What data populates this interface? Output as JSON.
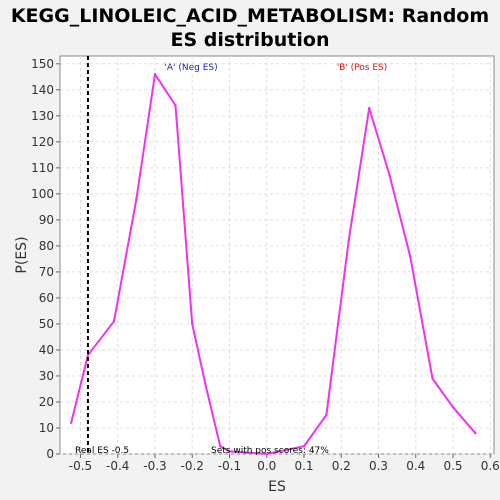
{
  "chart_data": {
    "type": "line",
    "title_line1": "KEGG_LINOLEIC_ACID_METABOLISM: Random",
    "title_line2": "ES distribution",
    "xlabel": "ES",
    "ylabel": "P(ES)",
    "xlim": [
      -0.555,
      0.61
    ],
    "ylim": [
      0,
      153
    ],
    "x_ticks": [
      "-0.5",
      "-0.4",
      "-0.3",
      "-0.2",
      "-0.1",
      "0.0",
      "0.1",
      "0.2",
      "0.3",
      "0.4",
      "0.5",
      "0.6"
    ],
    "x_tick_values": [
      -0.5,
      -0.4,
      -0.3,
      -0.2,
      -0.1,
      0.0,
      0.1,
      0.2,
      0.3,
      0.4,
      0.5,
      0.6
    ],
    "y_ticks": [
      0,
      10,
      20,
      30,
      40,
      50,
      60,
      70,
      80,
      90,
      100,
      110,
      120,
      130,
      140,
      150
    ],
    "grid": true,
    "series": [
      {
        "x": [
          -0.525,
          -0.48,
          -0.41,
          -0.35,
          -0.3,
          -0.245,
          -0.2,
          -0.165,
          -0.125,
          -0.1,
          0.0,
          0.1,
          0.16,
          0.22,
          0.275,
          0.33,
          0.385,
          0.445,
          0.5,
          0.56
        ],
        "y": [
          12,
          38,
          51,
          98,
          146,
          134,
          50,
          27,
          3,
          1,
          0,
          3,
          15,
          82,
          133,
          107,
          76,
          29,
          18,
          8
        ],
        "color": "#ee33ee"
      }
    ],
    "real_es_value": -0.48,
    "annotations": {
      "neg_label": "'A' (Neg ES)",
      "pos_label": "'B' (Pos ES)",
      "real_es": "Real ES -0.5",
      "pos_scores": "Sets with pos scores: 47%"
    },
    "colors": {
      "neg_label": "#2222bb",
      "pos_label": "#dd1111",
      "plot_background": "#ffffff",
      "page_background": "#f2f2f2"
    }
  }
}
